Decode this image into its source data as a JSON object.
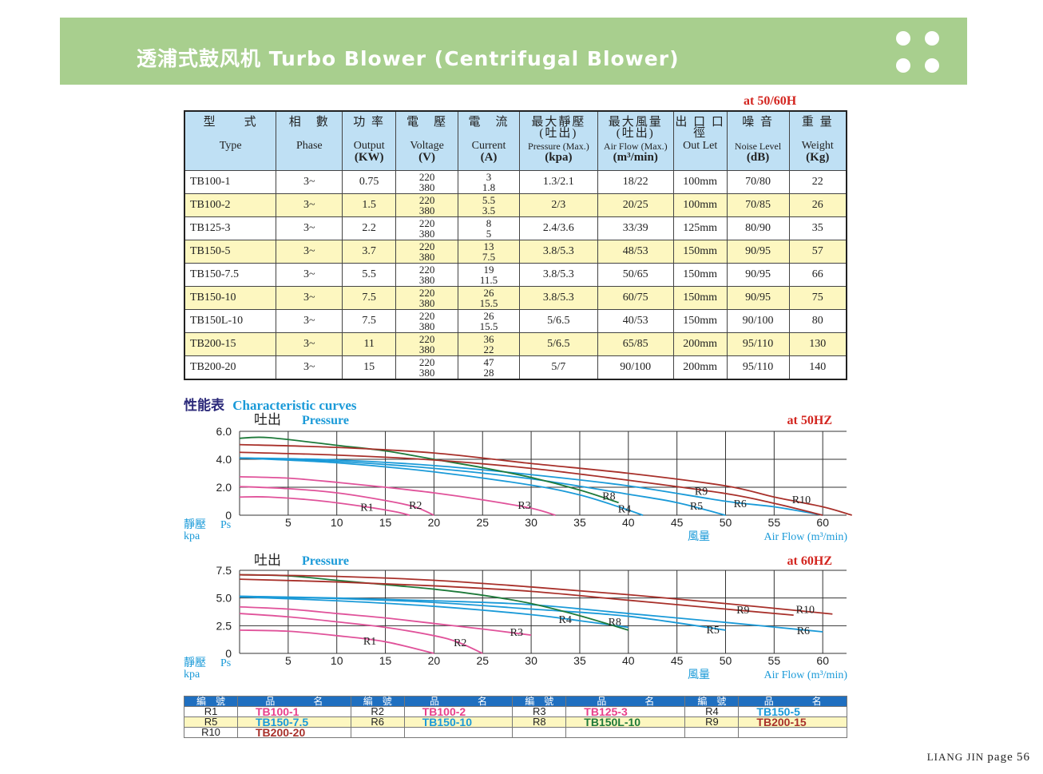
{
  "banner": {
    "title": "透浦式鼓风机 Turbo  Blower (Centrifugal Blower)"
  },
  "spec": {
    "freq_note": "at  50/60H",
    "headers": [
      {
        "zh": "型　　式",
        "en": "Type",
        "unit": ""
      },
      {
        "zh": "相　數",
        "en": "Phase",
        "unit": ""
      },
      {
        "zh": "功 率",
        "en": "Output",
        "unit": "(KW)"
      },
      {
        "zh": "電　壓",
        "en": "Voltage",
        "unit": "(V)"
      },
      {
        "zh": "電　流",
        "en": "Current",
        "unit": "(A)"
      },
      {
        "zh": "最大靜壓 (吐出)",
        "en": "Pressure (Max.)",
        "unit": "(kpa)"
      },
      {
        "zh": "最大風量 (吐出)",
        "en": "Air Flow (Max.)",
        "unit": "(m³/min)"
      },
      {
        "zh": "出 口 口 徑",
        "en": "Out Let",
        "unit": ""
      },
      {
        "zh": "噪 音",
        "en": "Noise  Level",
        "unit": "(dB)"
      },
      {
        "zh": "重 量",
        "en": "Weight",
        "unit": "(Kg)"
      }
    ],
    "rows": [
      {
        "type": "TB100-1",
        "phase": "3~",
        "output": "0.75",
        "v1": "220",
        "v2": "380",
        "a1": "3",
        "a2": "1.8",
        "pressure": "1.3/2.1",
        "flow": "18/22",
        "outlet": "100mm",
        "noise": "70/80",
        "weight": "22"
      },
      {
        "type": "TB100-2",
        "phase": "3~",
        "output": "1.5",
        "v1": "220",
        "v2": "380",
        "a1": "5.5",
        "a2": "3.5",
        "pressure": "2/3",
        "flow": "20/25",
        "outlet": "100mm",
        "noise": "70/85",
        "weight": "26"
      },
      {
        "type": "TB125-3",
        "phase": "3~",
        "output": "2.2",
        "v1": "220",
        "v2": "380",
        "a1": "8",
        "a2": "5",
        "pressure": "2.4/3.6",
        "flow": "33/39",
        "outlet": "125mm",
        "noise": "80/90",
        "weight": "35"
      },
      {
        "type": "TB150-5",
        "phase": "3~",
        "output": "3.7",
        "v1": "220",
        "v2": "380",
        "a1": "13",
        "a2": "7.5",
        "pressure": "3.8/5.3",
        "flow": "48/53",
        "outlet": "150mm",
        "noise": "90/95",
        "weight": "57"
      },
      {
        "type": "TB150-7.5",
        "phase": "3~",
        "output": "5.5",
        "v1": "220",
        "v2": "380",
        "a1": "19",
        "a2": "11.5",
        "pressure": "3.8/5.3",
        "flow": "50/65",
        "outlet": "150mm",
        "noise": "90/95",
        "weight": "66"
      },
      {
        "type": "TB150-10",
        "phase": "3~",
        "output": "7.5",
        "v1": "220",
        "v2": "380",
        "a1": "26",
        "a2": "15.5",
        "pressure": "3.8/5.3",
        "flow": "60/75",
        "outlet": "150mm",
        "noise": "90/95",
        "weight": "75"
      },
      {
        "type": "TB150L-10",
        "phase": "3~",
        "output": "7.5",
        "v1": "220",
        "v2": "380",
        "a1": "26",
        "a2": "15.5",
        "pressure": "5/6.5",
        "flow": "40/53",
        "outlet": "150mm",
        "noise": "90/100",
        "weight": "80"
      },
      {
        "type": "TB200-15",
        "phase": "3~",
        "output": "11",
        "v1": "220",
        "v2": "380",
        "a1": "36",
        "a2": "22",
        "pressure": "5/6.5",
        "flow": "65/85",
        "outlet": "200mm",
        "noise": "95/110",
        "weight": "130"
      },
      {
        "type": "TB200-20",
        "phase": "3~",
        "output": "15",
        "v1": "220",
        "v2": "380",
        "a1": "47",
        "a2": "28",
        "pressure": "5/7",
        "flow": "90/100",
        "outlet": "200mm",
        "noise": "95/110",
        "weight": "140"
      }
    ]
  },
  "curves_heading": {
    "zh": "性能表",
    "en": "Characteristic curves"
  },
  "chart_data": [
    {
      "type": "line",
      "title_zh": "吐出",
      "title": "Pressure",
      "freq": "at  50HZ",
      "ylabel_zh": "靜壓",
      "ylabel": "Ps",
      "yunit": "kpa",
      "xlabel_zh": "風量",
      "xlabel": "Air Flow (m³/min)",
      "xlim": [
        0,
        62
      ],
      "ylim": [
        0,
        6
      ],
      "xticks": [
        "5",
        "10",
        "15",
        "20",
        "25",
        "30",
        "35",
        "40",
        "45",
        "50",
        "55",
        "60"
      ],
      "yticks": [
        "0",
        "2.0",
        "4.0",
        "6.0"
      ],
      "grid": true,
      "series": [
        {
          "name": "R1",
          "color": "#e0529a",
          "points": [
            [
              0,
              1.3
            ],
            [
              3,
              1.3
            ],
            [
              8,
              1.05
            ],
            [
              13,
              0.6
            ],
            [
              16,
              0.25
            ],
            [
              17.5,
              0
            ]
          ],
          "label_at": [
            13.1,
            0.6
          ]
        },
        {
          "name": "R2",
          "color": "#e0529a",
          "points": [
            [
              0,
              2.05
            ],
            [
              5,
              1.9
            ],
            [
              10,
              1.6
            ],
            [
              15,
              1.05
            ],
            [
              18,
              0.6
            ],
            [
              20,
              0
            ]
          ],
          "label_at": [
            18.1,
            0.75
          ]
        },
        {
          "name": "R3",
          "color": "#e0529a",
          "points": [
            [
              0,
              2.75
            ],
            [
              5,
              2.65
            ],
            [
              10,
              2.35
            ],
            [
              15,
              2.0
            ],
            [
              20,
              1.6
            ],
            [
              25,
              1.1
            ],
            [
              30,
              0.5
            ],
            [
              32.5,
              0
            ]
          ],
          "label_at": [
            29.3,
            0.75
          ]
        },
        {
          "name": "R4",
          "color": "#1a9ad8",
          "points": [
            [
              0,
              4.1
            ],
            [
              10,
              3.75
            ],
            [
              20,
              3.1
            ],
            [
              30,
              2.15
            ],
            [
              35,
              1.45
            ],
            [
              39,
              0.6
            ],
            [
              41.5,
              0
            ]
          ],
          "label_at": [
            39.6,
            0.5
          ]
        },
        {
          "name": "R5",
          "color": "#1a9ad8",
          "points": [
            [
              0,
              4.1
            ],
            [
              10,
              3.85
            ],
            [
              20,
              3.35
            ],
            [
              30,
              2.6
            ],
            [
              40,
              1.5
            ],
            [
              45,
              0.9
            ],
            [
              50,
              0
            ]
          ],
          "label_at": [
            47,
            0.7
          ]
        },
        {
          "name": "R6",
          "color": "#1a9ad8",
          "points": [
            [
              0,
              4.1
            ],
            [
              10,
              3.95
            ],
            [
              20,
              3.55
            ],
            [
              30,
              2.9
            ],
            [
              40,
              2.1
            ],
            [
              50,
              1.0
            ],
            [
              55,
              0.6
            ],
            [
              60,
              0
            ]
          ],
          "label_at": [
            51.5,
            0.85
          ]
        },
        {
          "name": "R8",
          "color": "#1e7a3a",
          "points": [
            [
              0,
              5.5
            ],
            [
              3,
              5.55
            ],
            [
              10,
              5.0
            ],
            [
              15,
              4.6
            ],
            [
              20,
              4.0
            ],
            [
              25,
              3.4
            ],
            [
              30,
              2.7
            ],
            [
              35,
              1.8
            ],
            [
              39,
              0.9
            ]
          ],
          "label_at": [
            38,
            1.4
          ]
        },
        {
          "name": "R9",
          "color": "#a8302a",
          "points": [
            [
              0,
              4.5
            ],
            [
              10,
              4.3
            ],
            [
              20,
              3.95
            ],
            [
              30,
              3.35
            ],
            [
              40,
              2.5
            ],
            [
              50,
              1.55
            ],
            [
              55,
              0.85
            ],
            [
              60,
              0
            ]
          ],
          "label_at": [
            47.5,
            1.75
          ]
        },
        {
          "name": "R10",
          "color": "#a8302a",
          "points": [
            [
              0,
              5.05
            ],
            [
              10,
              4.85
            ],
            [
              20,
              4.45
            ],
            [
              30,
              3.7
            ],
            [
              40,
              3.0
            ],
            [
              50,
              2.1
            ],
            [
              55,
              1.3
            ],
            [
              60,
              0.6
            ],
            [
              63,
              0
            ]
          ],
          "label_at": [
            57.8,
            1.15
          ]
        }
      ]
    },
    {
      "type": "line",
      "title_zh": "吐出",
      "title": "Pressure",
      "freq": "at  60HZ",
      "ylabel_zh": "靜壓",
      "ylabel": "Ps",
      "yunit": "kpa",
      "xlabel_zh": "風量",
      "xlabel": "Air Flow (m³/min)",
      "xlim": [
        0,
        62
      ],
      "ylim": [
        0,
        7.5
      ],
      "xticks": [
        "5",
        "10",
        "15",
        "20",
        "25",
        "30",
        "35",
        "40",
        "45",
        "50",
        "55",
        "60"
      ],
      "yticks": [
        "0",
        "2.5",
        "5.0",
        "7.5"
      ],
      "grid": true,
      "series": [
        {
          "name": "R1",
          "color": "#e0529a",
          "points": [
            [
              0,
              2.1
            ],
            [
              5,
              2.0
            ],
            [
              10,
              1.6
            ],
            [
              15,
              1.05
            ],
            [
              20,
              0
            ]
          ],
          "label_at": [
            13.4,
            1.15
          ]
        },
        {
          "name": "R2",
          "color": "#e0529a",
          "points": [
            [
              0,
              3.6
            ],
            [
              5,
              3.3
            ],
            [
              10,
              2.85
            ],
            [
              15,
              2.35
            ],
            [
              20,
              1.6
            ],
            [
              22.5,
              1.0
            ],
            [
              25,
              0
            ]
          ],
          "label_at": [
            22.7,
            1.0
          ]
        },
        {
          "name": "R3",
          "color": "#e0529a",
          "points": [
            [
              0,
              4.2
            ],
            [
              5,
              4.0
            ],
            [
              10,
              3.6
            ],
            [
              15,
              3.2
            ],
            [
              20,
              2.7
            ],
            [
              25,
              2.2
            ],
            [
              30,
              1.65
            ]
          ],
          "label_at": [
            28.5,
            1.95
          ]
        },
        {
          "name": "R4",
          "color": "#1a9ad8",
          "points": [
            [
              0,
              5.1
            ],
            [
              10,
              4.75
            ],
            [
              20,
              4.25
            ],
            [
              30,
              3.5
            ],
            [
              35,
              2.95
            ],
            [
              40,
              2.35
            ]
          ],
          "label_at": [
            33.5,
            3.1
          ]
        },
        {
          "name": "R5",
          "color": "#1a9ad8",
          "points": [
            [
              0,
              5.15
            ],
            [
              10,
              4.95
            ],
            [
              20,
              4.6
            ],
            [
              30,
              4.0
            ],
            [
              40,
              3.35
            ],
            [
              50,
              2.1
            ]
          ],
          "label_at": [
            48.7,
            2.15
          ]
        },
        {
          "name": "R6",
          "color": "#1a9ad8",
          "points": [
            [
              0,
              5.15
            ],
            [
              10,
              5.0
            ],
            [
              20,
              4.75
            ],
            [
              30,
              4.4
            ],
            [
              40,
              3.6
            ],
            [
              50,
              2.8
            ],
            [
              60,
              1.95
            ]
          ],
          "label_at": [
            58,
            2.1
          ]
        },
        {
          "name": "R8",
          "color": "#1e7a3a",
          "points": [
            [
              0,
              7.1
            ],
            [
              5,
              7.0
            ],
            [
              10,
              6.6
            ],
            [
              15,
              6.2
            ],
            [
              20,
              5.8
            ],
            [
              25,
              5.25
            ],
            [
              30,
              4.5
            ],
            [
              35,
              3.4
            ],
            [
              40,
              2.1
            ]
          ],
          "label_at": [
            38.6,
            2.9
          ]
        },
        {
          "name": "R9",
          "color": "#a8302a",
          "points": [
            [
              0,
              6.7
            ],
            [
              10,
              6.45
            ],
            [
              20,
              6.1
            ],
            [
              30,
              5.6
            ],
            [
              40,
              4.8
            ],
            [
              50,
              4.0
            ],
            [
              57,
              3.45
            ]
          ],
          "label_at": [
            51.8,
            3.95
          ]
        },
        {
          "name": "R10",
          "color": "#a8302a",
          "points": [
            [
              0,
              7.1
            ],
            [
              10,
              6.95
            ],
            [
              20,
              6.6
            ],
            [
              30,
              6.0
            ],
            [
              40,
              5.3
            ],
            [
              50,
              4.5
            ],
            [
              61,
              3.55
            ]
          ],
          "label_at": [
            58.2,
            4.0
          ]
        }
      ]
    }
  ],
  "legend": {
    "header_code": "編　號",
    "header_name": "品　　　　名",
    "rows": [
      [
        {
          "code": "R1",
          "name": "TB100-1",
          "color": "#e8408a"
        },
        {
          "code": "R2",
          "name": "TB100-2",
          "color": "#e8408a"
        },
        {
          "code": "R3",
          "name": "TB125-3",
          "color": "#e8408a"
        },
        {
          "code": "R4",
          "name": "TB150-5",
          "color": "#1a9ad8"
        }
      ],
      [
        {
          "code": "R5",
          "name": "TB150-7.5",
          "color": "#1a9ad8"
        },
        {
          "code": "R6",
          "name": "TB150-10",
          "color": "#1a9ad8"
        },
        {
          "code": "R8",
          "name": "TB150L-10",
          "color": "#1e7a3a"
        },
        {
          "code": "R9",
          "name": "TB200-15",
          "color": "#a8302a"
        }
      ],
      [
        {
          "code": "R10",
          "name": "TB200-20",
          "color": "#a8302a"
        }
      ]
    ]
  },
  "footer": {
    "brand": "LIANG JIN",
    "page_label": "page",
    "page_no": "56"
  }
}
